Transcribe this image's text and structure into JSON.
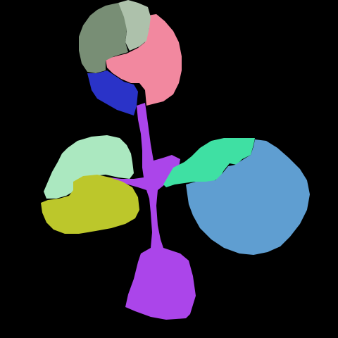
{
  "colors": {
    "background": "#000000",
    "stem": "#ab45ea",
    "upper_leaf_dark_green": "#788e75",
    "upper_leaf_pale_green": "#adc1ab",
    "upper_leaf_pink": "#f2889f",
    "upper_leaf_blue": "#2a33c8",
    "left_leaf_mint": "#abe8c0",
    "left_leaf_olive": "#bcc72b",
    "right_leaf_teal": "#3fe0a3",
    "right_leaf_steel_blue": "#5f9ed1"
  },
  "segments": [
    {
      "name": "segment-stem",
      "color_key": "stem"
    },
    {
      "name": "segment-upper-leaf-dark-green",
      "color_key": "upper_leaf_dark_green"
    },
    {
      "name": "segment-upper-leaf-pale-green",
      "color_key": "upper_leaf_pale_green"
    },
    {
      "name": "segment-upper-leaf-pink",
      "color_key": "upper_leaf_pink"
    },
    {
      "name": "segment-upper-leaf-blue",
      "color_key": "upper_leaf_blue"
    },
    {
      "name": "segment-left-leaf-mint",
      "color_key": "left_leaf_mint"
    },
    {
      "name": "segment-left-leaf-olive",
      "color_key": "left_leaf_olive"
    },
    {
      "name": "segment-right-leaf-teal",
      "color_key": "right_leaf_teal"
    },
    {
      "name": "segment-right-leaf-steel-blue",
      "color_key": "right_leaf_steel_blue"
    }
  ]
}
